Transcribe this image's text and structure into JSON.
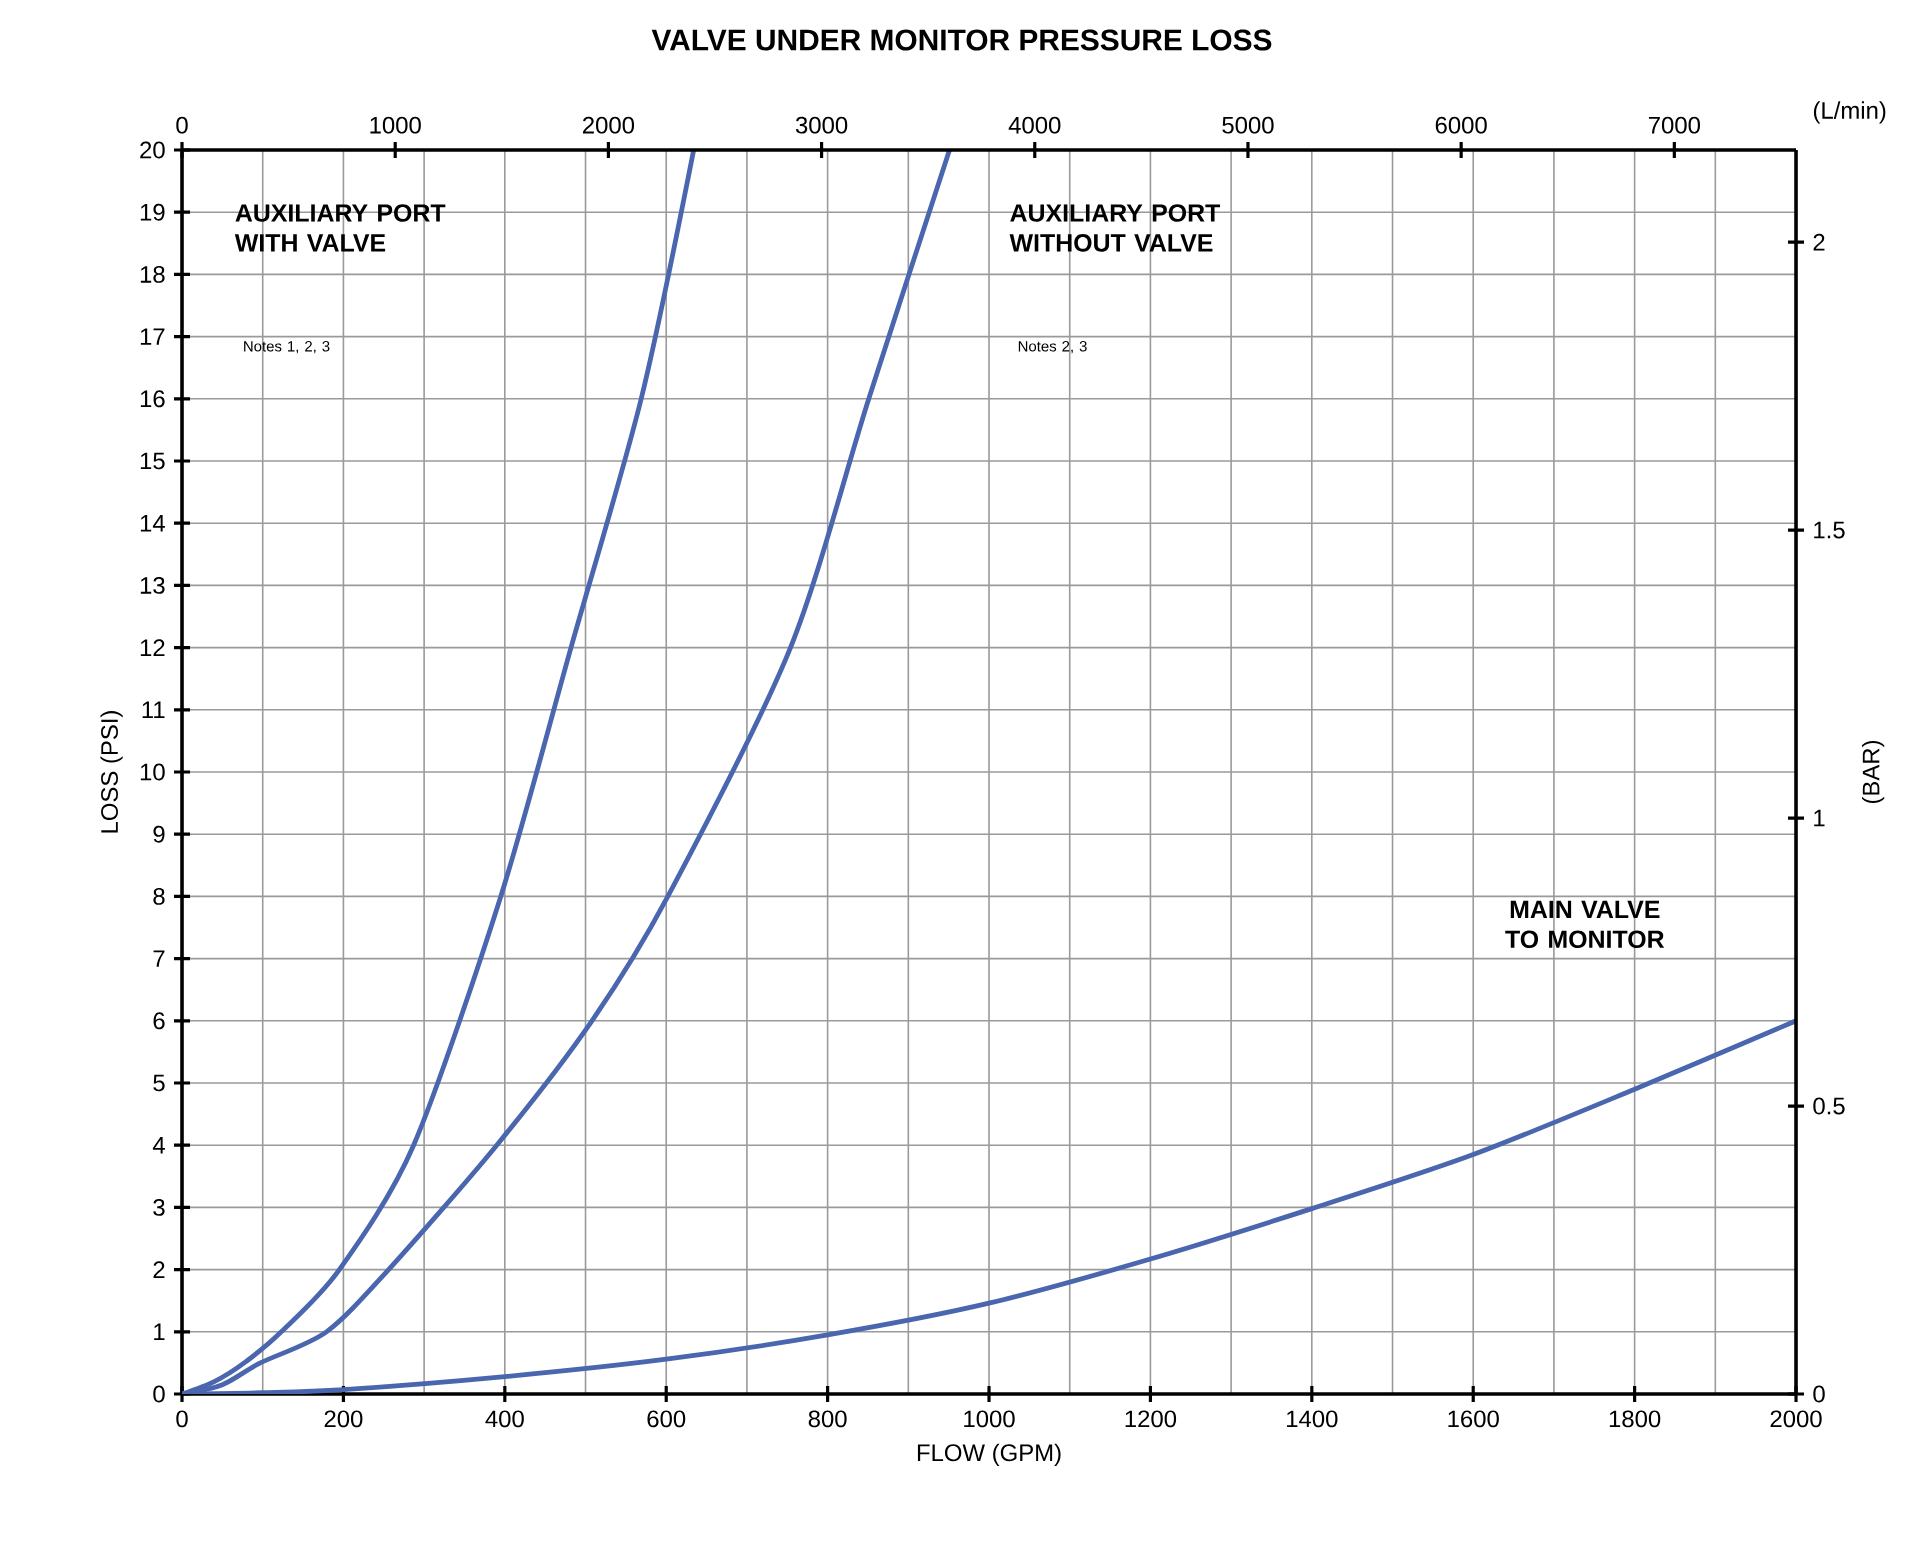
{
  "chart_data": {
    "type": "line",
    "title": "VALVE UNDER MONITOR PRESSURE LOSS",
    "xlabel": "FLOW (GPM)",
    "ylabel": "LOSS (PSI)",
    "y2label": "(BAR)",
    "x2label": "(L/min)",
    "xlim": [
      0,
      2000
    ],
    "ylim": [
      0,
      20
    ],
    "xticks": [
      0,
      200,
      400,
      600,
      800,
      1000,
      1200,
      1400,
      1600,
      1800,
      2000
    ],
    "yticks": [
      0,
      1,
      2,
      3,
      4,
      5,
      6,
      7,
      8,
      9,
      10,
      11,
      12,
      13,
      14,
      15,
      16,
      17,
      18,
      19,
      20
    ],
    "x2lim": [
      0,
      7570.8
    ],
    "x2ticks": [
      0,
      1000,
      2000,
      3000,
      4000,
      5000,
      6000,
      7000
    ],
    "y2lim": [
      0,
      2.16
    ],
    "y2ticks": [
      0,
      0.5,
      1,
      1.5,
      2
    ],
    "grid": true,
    "annotations": [
      "AUXILIARY PORT WITH VALVE",
      "Notes 1, 2, 3",
      "AUXILIARY PORT WITHOUT VALVE",
      "Notes 2, 3",
      "MAIN VALVE TO MONITOR"
    ],
    "series": [
      {
        "color": "#4a66ae",
        "x": [
          0,
          40,
          77,
          123,
          195,
          287,
          395,
          482,
          569,
          634
        ],
        "values": [
          0,
          0.2,
          0.5,
          1,
          2,
          4,
          8,
          12,
          16,
          20
        ]
      },
      {
        "color": "#4a66ae",
        "x": [
          0,
          50,
          97,
          179,
          256,
          390,
          508,
          602,
          754,
          851,
          951
        ],
        "values": [
          0,
          0.15,
          0.5,
          1,
          2,
          4,
          6,
          8,
          12,
          16,
          20
        ]
      },
      {
        "color": "#4a66ae",
        "x": [
          0,
          100,
          200,
          400,
          600,
          800,
          1000,
          1200,
          1400,
          1600,
          1800,
          2000
        ],
        "values": [
          0,
          0.02,
          0.07,
          0.28,
          0.56,
          0.95,
          1.46,
          2.17,
          2.98,
          3.85,
          4.9,
          6.0
        ]
      }
    ]
  }
}
